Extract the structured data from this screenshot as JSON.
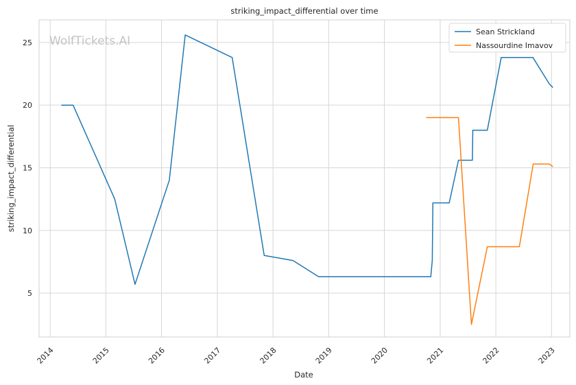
{
  "chart_data": {
    "type": "line",
    "title": "striking_impact_differential over time",
    "xlabel": "Date",
    "ylabel": "striking_impact_differential",
    "watermark": "WolfTickets.AI",
    "x_ticks": [
      "2014",
      "2015",
      "2016",
      "2017",
      "2018",
      "2019",
      "2020",
      "2021",
      "2022",
      "2023"
    ],
    "y_ticks": [
      5,
      10,
      15,
      20,
      25
    ],
    "xlim": [
      "2013-10-20",
      "2023-05-01"
    ],
    "ylim": [
      1.5,
      26.8
    ],
    "grid": true,
    "legend_position": "top-right",
    "series": [
      {
        "name": "Sean Strickland",
        "color": "#1f77b4",
        "points": [
          [
            "2014-03-15",
            20.0
          ],
          [
            "2014-05-31",
            20.0
          ],
          [
            "2015-02-28",
            12.5
          ],
          [
            "2015-07-11",
            5.7
          ],
          [
            "2016-02-21",
            14.0
          ],
          [
            "2016-06-04",
            25.6
          ],
          [
            "2017-04-08",
            23.8
          ],
          [
            "2017-11-04",
            8.0
          ],
          [
            "2018-05-12",
            7.6
          ],
          [
            "2018-10-27",
            6.3
          ],
          [
            "2020-10-31",
            6.3
          ],
          [
            "2020-11-10",
            7.6
          ],
          [
            "2020-11-14",
            12.2
          ],
          [
            "2021-03-01",
            12.2
          ],
          [
            "2021-05-01",
            15.6
          ],
          [
            "2021-07-31",
            15.6
          ],
          [
            "2021-08-03",
            18.0
          ],
          [
            "2021-11-06",
            18.0
          ],
          [
            "2022-02-05",
            23.8
          ],
          [
            "2022-09-01",
            23.8
          ],
          [
            "2022-12-17",
            21.7
          ],
          [
            "2023-01-10",
            21.4
          ]
        ]
      },
      {
        "name": "Nassourdine Imavov",
        "color": "#ff7f0e",
        "points": [
          [
            "2020-10-01",
            19.0
          ],
          [
            "2021-05-01",
            19.0
          ],
          [
            "2021-07-25",
            2.5
          ],
          [
            "2021-11-06",
            8.7
          ],
          [
            "2022-06-04",
            8.7
          ],
          [
            "2022-09-03",
            15.3
          ],
          [
            "2022-12-17",
            15.3
          ],
          [
            "2023-01-10",
            15.1
          ]
        ]
      }
    ]
  }
}
